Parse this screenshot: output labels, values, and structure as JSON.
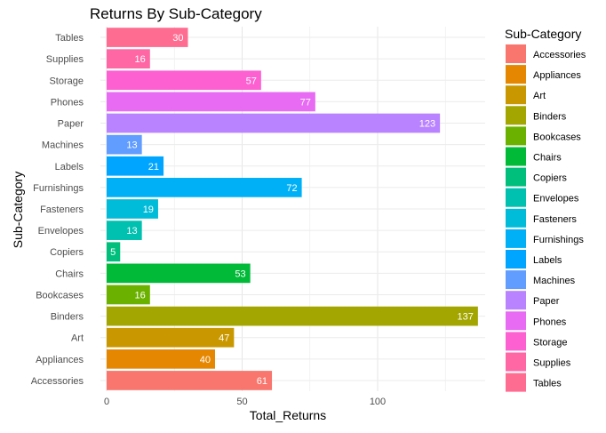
{
  "chart_data": {
    "type": "bar",
    "orientation": "horizontal",
    "title": "Returns By Sub-Category",
    "xlabel": "Total_Returns",
    "ylabel": "Sub-Category",
    "xlim": [
      0,
      143
    ],
    "xticks": [
      0,
      50,
      100
    ],
    "grid": true,
    "legend_title": "Sub-Category",
    "legend_position": "right",
    "categories": [
      "Accessories",
      "Appliances",
      "Art",
      "Binders",
      "Bookcases",
      "Chairs",
      "Copiers",
      "Envelopes",
      "Fasteners",
      "Furnishings",
      "Labels",
      "Machines",
      "Paper",
      "Phones",
      "Storage",
      "Supplies",
      "Tables"
    ],
    "values": [
      61,
      40,
      47,
      137,
      16,
      53,
      5,
      13,
      19,
      72,
      21,
      13,
      123,
      77,
      57,
      16,
      30
    ],
    "colors": [
      "#F8766D",
      "#E58700",
      "#C99800",
      "#A3A500",
      "#6BB100",
      "#00BA38",
      "#00BF7D",
      "#00C0AF",
      "#00BCD8",
      "#00B0F6",
      "#00A5FF",
      "#619CFF",
      "#B983FF",
      "#E76BF3",
      "#FD61D1",
      "#FF67A4",
      "#FF6C91"
    ]
  }
}
